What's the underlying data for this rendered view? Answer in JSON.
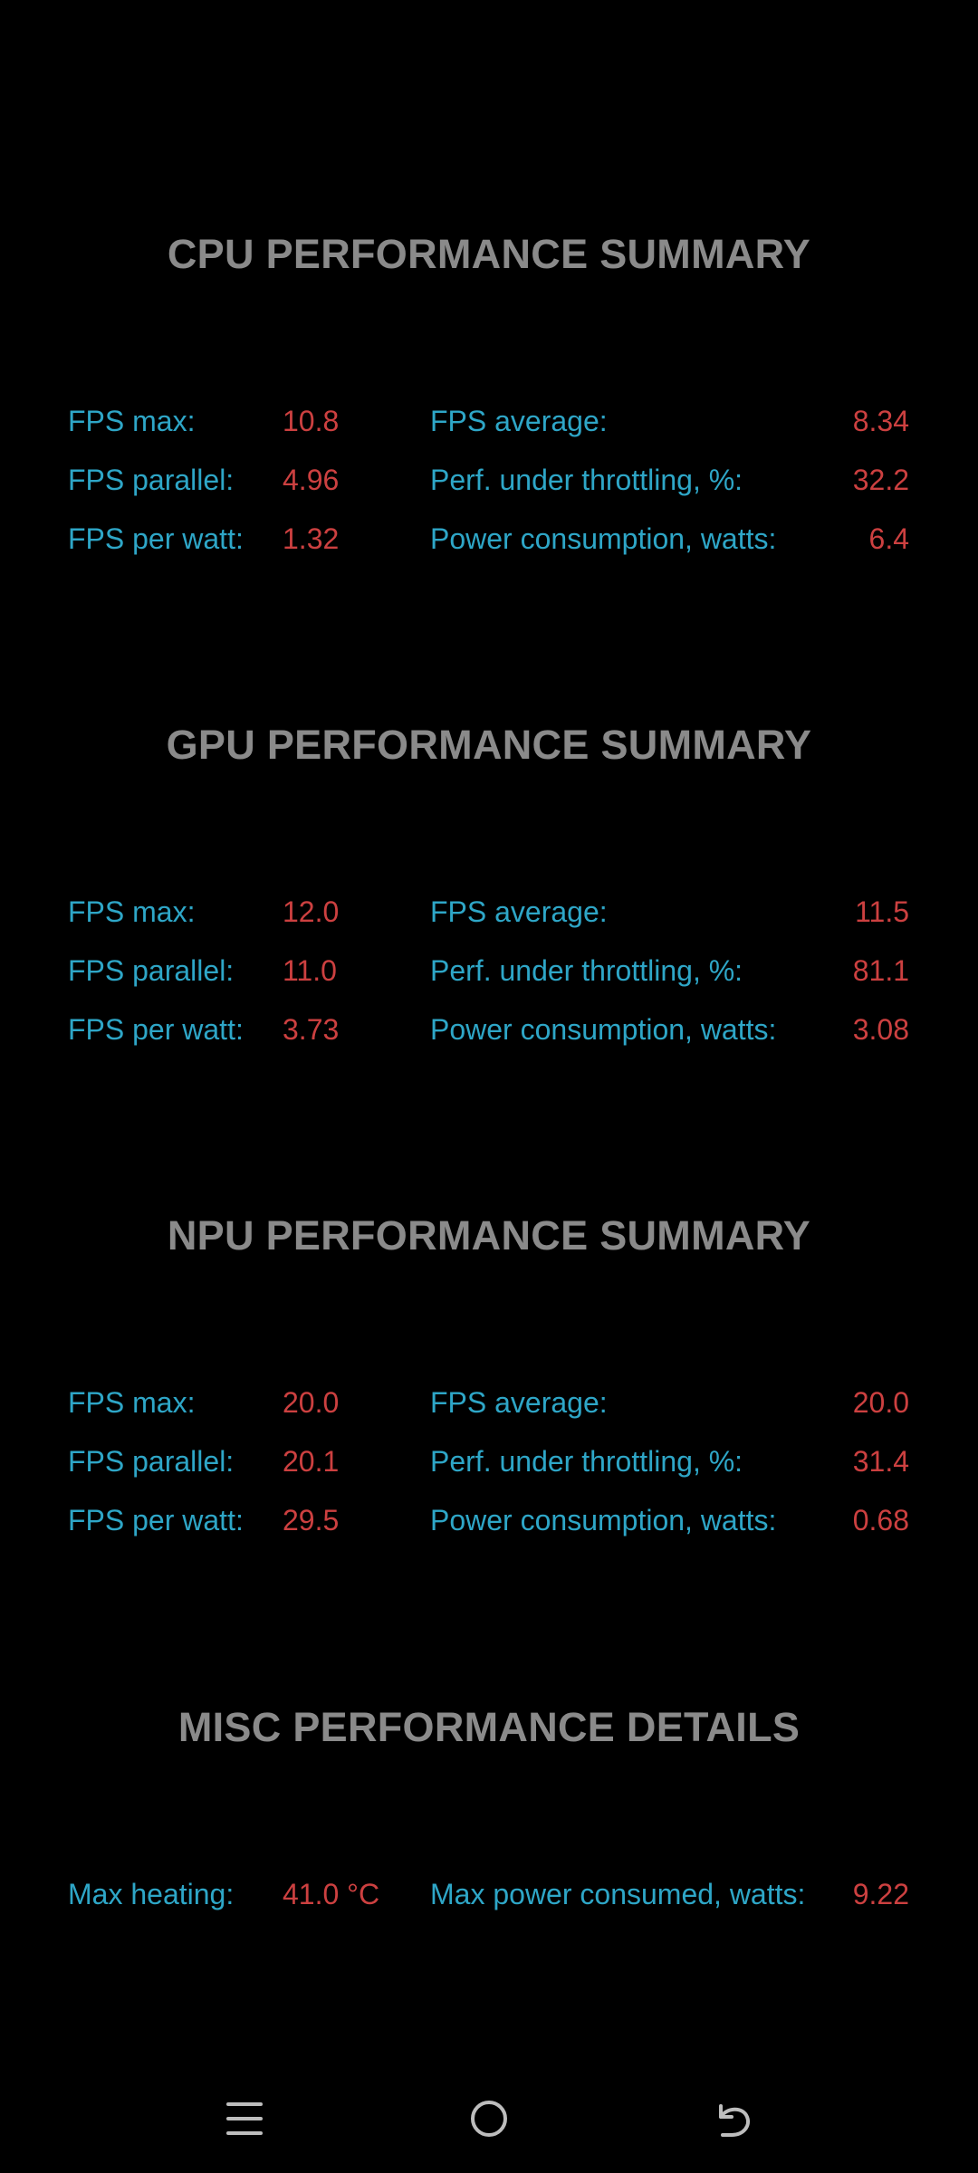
{
  "sections": [
    {
      "title": "CPU PERFORMANCE SUMMARY",
      "rows": [
        {
          "l1": "FPS max:",
          "v1": "10.8",
          "l2": "FPS average:",
          "v2": "8.34"
        },
        {
          "l1": "FPS parallel:",
          "v1": "4.96",
          "l2": "Perf. under throttling, %:",
          "v2": "32.2"
        },
        {
          "l1": "FPS per watt:",
          "v1": "1.32",
          "l2": "Power consumption, watts:",
          "v2": "6.4"
        }
      ]
    },
    {
      "title": "GPU PERFORMANCE SUMMARY",
      "rows": [
        {
          "l1": "FPS max:",
          "v1": "12.0",
          "l2": "FPS average:",
          "v2": "11.5"
        },
        {
          "l1": "FPS parallel:",
          "v1": "11.0",
          "l2": "Perf. under throttling, %:",
          "v2": "81.1"
        },
        {
          "l1": "FPS per watt:",
          "v1": "3.73",
          "l2": "Power consumption, watts:",
          "v2": "3.08"
        }
      ]
    },
    {
      "title": "NPU PERFORMANCE SUMMARY",
      "rows": [
        {
          "l1": "FPS max:",
          "v1": "20.0",
          "l2": "FPS average:",
          "v2": "20.0"
        },
        {
          "l1": "FPS parallel:",
          "v1": "20.1",
          "l2": "Perf. under throttling, %:",
          "v2": "31.4"
        },
        {
          "l1": "FPS per watt:",
          "v1": "29.5",
          "l2": "Power consumption, watts:",
          "v2": "0.68"
        }
      ]
    },
    {
      "title": "MISC PERFORMANCE DETAILS",
      "rows": [
        {
          "l1": "Max heating:",
          "v1": "41.0 °C",
          "l2": "Max power consumed, watts:",
          "v2": "9.22"
        }
      ]
    }
  ],
  "navbar": {
    "menu_icon": "menu-icon",
    "home_icon": "home-icon",
    "back_icon": "back-icon"
  },
  "colors": {
    "background": "#000000",
    "title": "#8a8a8a",
    "label": "#2ea6c7",
    "value": "#cc4040"
  }
}
